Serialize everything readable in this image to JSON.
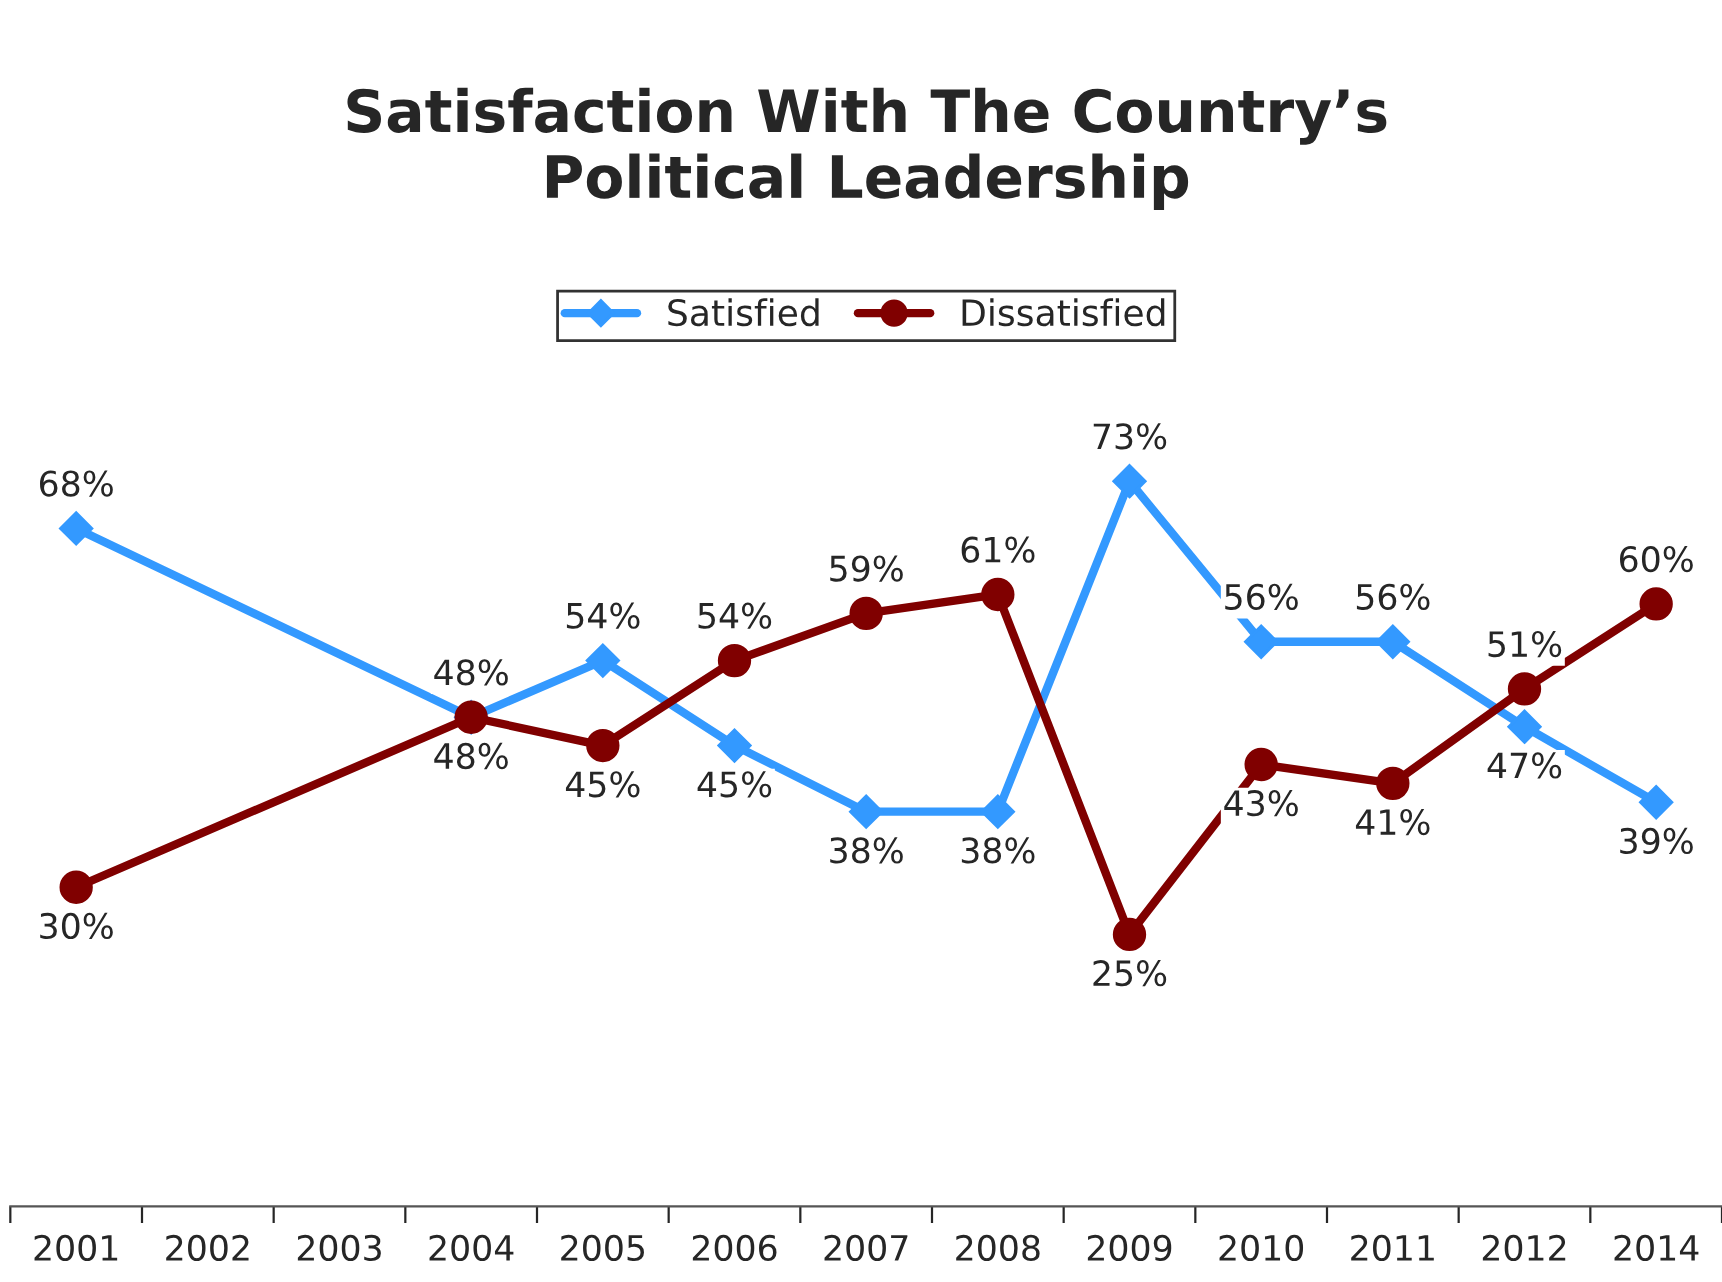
{
  "chart_data": {
    "type": "line",
    "title": "Satisfaction With The Country’s\nPolitical Leadership",
    "categories": [
      "2001",
      "2002",
      "2003",
      "2004",
      "2005",
      "2006",
      "2007",
      "2008",
      "2009",
      "2010",
      "2011",
      "2012",
      "2014"
    ],
    "series": [
      {
        "name": "Satisfied",
        "color": "#3399ff",
        "marker": "diamond",
        "values": [
          68,
          null,
          null,
          48,
          54,
          45,
          38,
          38,
          73,
          56,
          56,
          47,
          39
        ],
        "value_labels": [
          "68%",
          null,
          null,
          "48%",
          "54%",
          "45%",
          "38%",
          "38%",
          "73%",
          "56%",
          "56%",
          "47%",
          "39%"
        ]
      },
      {
        "name": "Dissatisfied",
        "color": "#800000",
        "marker": "circle",
        "values": [
          30,
          null,
          null,
          48,
          45,
          54,
          59,
          61,
          25,
          43,
          41,
          51,
          60
        ],
        "value_labels": [
          "30%",
          null,
          null,
          "48%",
          "45%",
          "54%",
          "59%",
          "61%",
          "25%",
          "43%",
          "41%",
          "51%",
          "60%"
        ]
      }
    ],
    "legend": "top",
    "grid": false
  }
}
